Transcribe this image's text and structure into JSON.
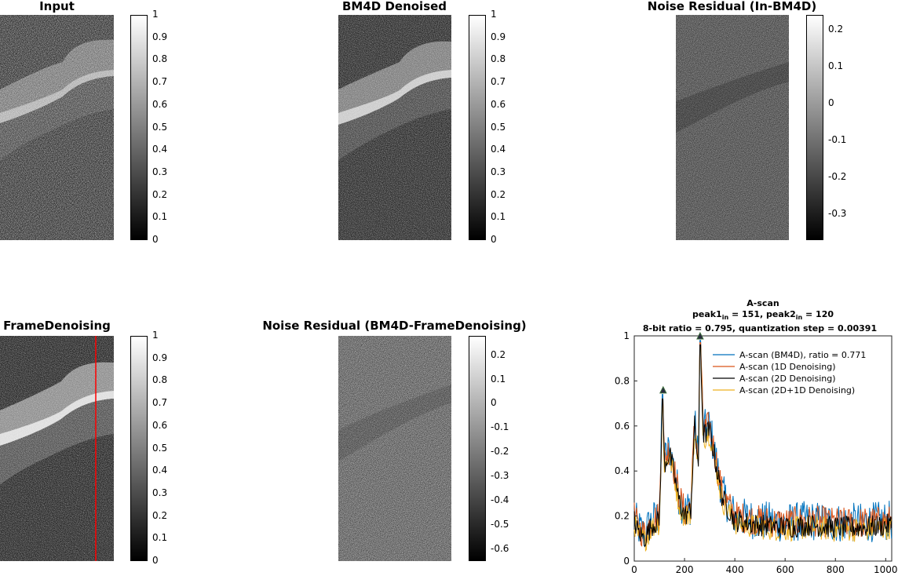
{
  "panels": {
    "input": {
      "title": "Input"
    },
    "bm4d": {
      "title": "BM4D Denoised"
    },
    "residual_in_bm4d": {
      "title": "Noise Residual (In-BM4D)"
    },
    "frame": {
      "title": "FrameDenoising"
    },
    "residual_bm4d_frame": {
      "title": "Noise Residual (BM4D-FrameDenoising)"
    }
  },
  "colorbars": {
    "unit": [
      "1",
      "0.9",
      "0.8",
      "0.7",
      "0.6",
      "0.5",
      "0.4",
      "0.3",
      "0.2",
      "0.1",
      "0"
    ],
    "residual1": [
      "0.2",
      "0.1",
      "0",
      "-0.1",
      "-0.2",
      "-0.3"
    ],
    "residual2": [
      "0.2",
      "0.1",
      "0",
      "-0.1",
      "-0.2",
      "-0.3",
      "-0.4",
      "-0.5",
      "-0.6"
    ]
  },
  "colorbar_ranges": {
    "unit": [
      0,
      1
    ],
    "residual1": [
      -0.37,
      0.24
    ],
    "residual2": [
      -0.65,
      0.28
    ]
  },
  "chart_data": {
    "type": "line",
    "title_line1": "A-scan",
    "title_line2_a": "peak1",
    "title_line2_sub": "in",
    "title_line2_b": " = 151, peak2",
    "title_line2_c": " = 120",
    "title_line3": "8-bit ratio = 0.795, quantization step = 0.00391",
    "xlim": [
      0,
      1024
    ],
    "ylim": [
      0,
      1
    ],
    "xticks": [
      "0",
      "200",
      "400",
      "600",
      "800",
      "1000"
    ],
    "yticks": [
      "0",
      "0.2",
      "0.4",
      "0.6",
      "0.8",
      "1"
    ],
    "legend_position": "top-right",
    "peaks": [
      {
        "x": 115,
        "y": 0.76
      },
      {
        "x": 262,
        "y": 1.0
      }
    ],
    "series": [
      {
        "name": "A-scan (BM4D), ratio = 0.771",
        "color": "#0072BD"
      },
      {
        "name": "A-scan (1D Denoising)",
        "color": "#D95319"
      },
      {
        "name": "A-scan (2D Denoising)",
        "color": "#000000"
      },
      {
        "name": "A-scan (2D+1D Denoising)",
        "color": "#EDB120"
      }
    ],
    "profile_points": [
      [
        0,
        0.2
      ],
      [
        15,
        0.15
      ],
      [
        40,
        0.12
      ],
      [
        70,
        0.18
      ],
      [
        100,
        0.2
      ],
      [
        112,
        0.72
      ],
      [
        120,
        0.45
      ],
      [
        140,
        0.5
      ],
      [
        160,
        0.4
      ],
      [
        175,
        0.3
      ],
      [
        200,
        0.22
      ],
      [
        225,
        0.25
      ],
      [
        240,
        0.62
      ],
      [
        255,
        0.45
      ],
      [
        262,
        0.98
      ],
      [
        275,
        0.58
      ],
      [
        300,
        0.6
      ],
      [
        330,
        0.42
      ],
      [
        350,
        0.3
      ],
      [
        380,
        0.24
      ],
      [
        400,
        0.2
      ],
      [
        500,
        0.18
      ],
      [
        600,
        0.17
      ],
      [
        700,
        0.18
      ],
      [
        800,
        0.17
      ],
      [
        900,
        0.17
      ],
      [
        1024,
        0.18
      ]
    ]
  }
}
